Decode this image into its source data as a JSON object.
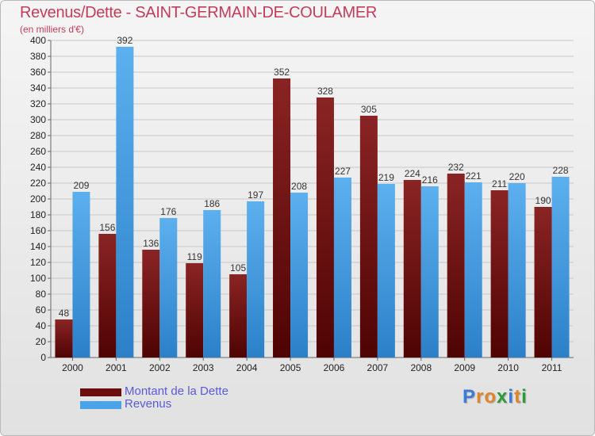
{
  "title": "Revenus/Dette - SAINT-GERMAIN-DE-COULAMER",
  "subtitle": "(en milliers d'€)",
  "colors": {
    "dette": "#7b1515",
    "revenus": "#4aa3e6",
    "title": "#c33c5a",
    "legend_text": "#5a5ad6"
  },
  "legend": {
    "items": [
      {
        "label": "Montant de la Dette",
        "color": "#6b0d0d"
      },
      {
        "label": "Revenus",
        "color": "#4aa3e6"
      }
    ]
  },
  "logo": {
    "letters": [
      "P",
      "r",
      "o",
      "x",
      "i",
      "t",
      "i"
    ],
    "colors": [
      "#3a7ad8",
      "#e0862a",
      "#e0862a",
      "#2a9c3a",
      "#3a7ad8",
      "#e0862a",
      "#2a9c3a"
    ]
  },
  "chart_data": {
    "type": "bar",
    "categories": [
      "2000",
      "2001",
      "2002",
      "2003",
      "2004",
      "2005",
      "2006",
      "2007",
      "2008",
      "2009",
      "2010",
      "2011"
    ],
    "series": [
      {
        "name": "Montant de la Dette",
        "values": [
          48,
          156,
          136,
          119,
          105,
          352,
          328,
          305,
          224,
          232,
          211,
          190
        ]
      },
      {
        "name": "Revenus",
        "values": [
          209,
          392,
          176,
          186,
          197,
          208,
          227,
          219,
          216,
          221,
          220,
          228
        ]
      }
    ],
    "ylim": [
      0,
      400
    ],
    "yticks": [
      0,
      20,
      40,
      60,
      80,
      100,
      120,
      140,
      160,
      180,
      200,
      220,
      240,
      260,
      280,
      300,
      320,
      340,
      360,
      380,
      400
    ],
    "grid": true,
    "legend_position": "bottom-left"
  }
}
